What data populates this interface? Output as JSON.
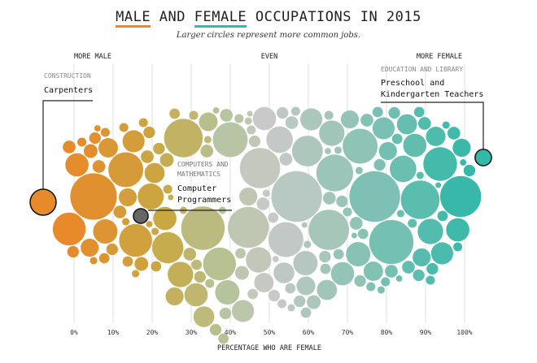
{
  "chart_data": {
    "type": "scatter",
    "subtype": "beeswarm",
    "title_parts": {
      "male": "MALE",
      "and": " AND ",
      "female": "FEMALE",
      "rest": " OCCUPATIONS IN 2015"
    },
    "subtitle": "Larger circles represent more common jobs.",
    "xlabel": "PERCENTAGE WHO ARE FEMALE",
    "xlim": [
      0,
      100
    ],
    "x_ticks": [
      "0%",
      "10%",
      "20%",
      "30%",
      "40%",
      "50%",
      "60%",
      "70%",
      "80%",
      "90%",
      "100%"
    ],
    "grid": true,
    "top_labels": {
      "male": "MORE MALE",
      "even": "EVEN",
      "female": "MORE FEMALE"
    },
    "colors": {
      "male": "#e8892a",
      "mid_male": "#c9a843",
      "mid": "#b5c49c",
      "even": "#c9c9c9",
      "mid_female": "#a4c6b9",
      "female": "#34b8a9",
      "highlight_gray": "#666666"
    },
    "size_note": "size = relative number of workers",
    "annotations": [
      {
        "category": "CONSTRUCTION",
        "label": "Carpenters",
        "pct_female": 2,
        "size": 25
      },
      {
        "category": "COMPUTERS AND MATHEMATICS",
        "label_lines": [
          "Computer",
          "Programmers"
        ],
        "pct_female": 21,
        "size": 8
      },
      {
        "category": "EDUCATION AND LIBRARY",
        "label_lines": [
          "Preschool and",
          "Kindergarten Teachers"
        ],
        "pct_female": 97,
        "size": 10
      }
    ],
    "points": [
      [
        5,
        80
      ],
      [
        12,
        45
      ],
      [
        28,
        55
      ],
      [
        33,
        70
      ],
      [
        44,
        62
      ],
      [
        47,
        60
      ],
      [
        57,
        95
      ],
      [
        53,
        45
      ],
      [
        64,
        60
      ],
      [
        68,
        50
      ],
      [
        77,
        95
      ],
      [
        80,
        72
      ],
      [
        88,
        55
      ],
      [
        99,
        62
      ],
      [
        95,
        42
      ],
      [
        40,
        45
      ],
      [
        17,
        40
      ],
      [
        0,
        40
      ],
      [
        24,
        36
      ],
      [
        72,
        45
      ],
      [
        36,
        40
      ],
      [
        61,
        35
      ],
      [
        2,
        20
      ],
      [
        8,
        22
      ],
      [
        14,
        18
      ],
      [
        19,
        25
      ],
      [
        22,
        20
      ],
      [
        26,
        24
      ],
      [
        30,
        20
      ],
      [
        38,
        22
      ],
      [
        42,
        18
      ],
      [
        46,
        24
      ],
      [
        50,
        20
      ],
      [
        52,
        26
      ],
      [
        58,
        22
      ],
      [
        62,
        18
      ],
      [
        66,
        24
      ],
      [
        70,
        20
      ],
      [
        74,
        22
      ],
      [
        78,
        18
      ],
      [
        83,
        26
      ],
      [
        86,
        20
      ],
      [
        90,
        24
      ],
      [
        93,
        18
      ],
      [
        97,
        20
      ],
      [
        10,
        14
      ],
      [
        20,
        15
      ],
      [
        32,
        16
      ],
      [
        48,
        14
      ],
      [
        55,
        16
      ],
      [
        66,
        15
      ],
      [
        76,
        14
      ],
      [
        84,
        15
      ],
      [
        92,
        14
      ],
      [
        4,
        12
      ],
      [
        15,
        12
      ],
      [
        27,
        12
      ],
      [
        35,
        13
      ],
      [
        44,
        12
      ],
      [
        60,
        13
      ],
      [
        70,
        12
      ],
      [
        81,
        12
      ],
      [
        89,
        12
      ],
      [
        98,
        12
      ],
      [
        0,
        6
      ],
      [
        1,
        5
      ],
      [
        3,
        7
      ],
      [
        6,
        5
      ],
      [
        7,
        6
      ],
      [
        9,
        4
      ],
      [
        11,
        5
      ],
      [
        13,
        6
      ],
      [
        15,
        4
      ],
      [
        16,
        7
      ],
      [
        18,
        5
      ],
      [
        20,
        6
      ],
      [
        21,
        4
      ],
      [
        23,
        5
      ],
      [
        25,
        7
      ],
      [
        27,
        4
      ],
      [
        29,
        6
      ],
      [
        31,
        5
      ],
      [
        32,
        4
      ],
      [
        34,
        6
      ],
      [
        35,
        5
      ],
      [
        37,
        4
      ],
      [
        39,
        6
      ],
      [
        40,
        5
      ],
      [
        42,
        4
      ],
      [
        43,
        7
      ],
      [
        45,
        5
      ],
      [
        47,
        4
      ],
      [
        49,
        6
      ],
      [
        50,
        5
      ],
      [
        51,
        4
      ],
      [
        53,
        6
      ],
      [
        54,
        5
      ],
      [
        56,
        4
      ],
      [
        57,
        6
      ],
      [
        59,
        5
      ],
      [
        60,
        4
      ],
      [
        62,
        7
      ],
      [
        63,
        5
      ],
      [
        65,
        4
      ],
      [
        66,
        6
      ],
      [
        68,
        5
      ],
      [
        69,
        4
      ],
      [
        71,
        6
      ],
      [
        72,
        5
      ],
      [
        74,
        4
      ],
      [
        75,
        6
      ],
      [
        77,
        5
      ],
      [
        79,
        4
      ],
      [
        80,
        6
      ],
      [
        82,
        5
      ],
      [
        84,
        4
      ],
      [
        85,
        6
      ],
      [
        87,
        5
      ],
      [
        89,
        4
      ],
      [
        91,
        6
      ],
      [
        93,
        5
      ],
      [
        95,
        4
      ],
      [
        96,
        6
      ],
      [
        100,
        5
      ],
      [
        2,
        3
      ],
      [
        5,
        2
      ],
      [
        8,
        3
      ],
      [
        12,
        2
      ],
      [
        14,
        3
      ],
      [
        17,
        2
      ],
      [
        19,
        3
      ],
      [
        22,
        2
      ],
      [
        24,
        3
      ],
      [
        28,
        2
      ],
      [
        30,
        3
      ],
      [
        33,
        2
      ],
      [
        36,
        3
      ],
      [
        38,
        2
      ],
      [
        41,
        3
      ],
      [
        44,
        2
      ],
      [
        46,
        3
      ],
      [
        48,
        2
      ],
      [
        52,
        3
      ],
      [
        55,
        2
      ],
      [
        58,
        3
      ],
      [
        61,
        2
      ],
      [
        64,
        3
      ],
      [
        67,
        2
      ],
      [
        70,
        3
      ],
      [
        73,
        2
      ],
      [
        76,
        3
      ],
      [
        78,
        2
      ],
      [
        81,
        3
      ],
      [
        83,
        2
      ],
      [
        86,
        3
      ],
      [
        88,
        2
      ],
      [
        90,
        3
      ],
      [
        94,
        2
      ],
      [
        97,
        3
      ],
      [
        6,
        1.5
      ],
      [
        18,
        1.5
      ],
      [
        26,
        1.2
      ],
      [
        37,
        1.5
      ],
      [
        45,
        1.2
      ],
      [
        51,
        1.5
      ],
      [
        59,
        1.2
      ],
      [
        65,
        1.5
      ],
      [
        73,
        1.2
      ],
      [
        82,
        1.5
      ],
      [
        92,
        1.2
      ],
      [
        99,
        1.5
      ]
    ]
  }
}
